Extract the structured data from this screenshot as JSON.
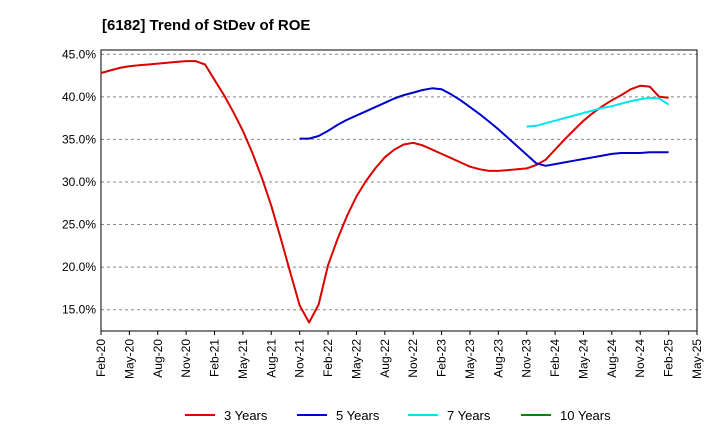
{
  "chart_data": {
    "type": "line",
    "title": "[6182]  Trend of StDev of ROE",
    "xlabel": "",
    "ylabel": "",
    "x_tick_labels": [
      "Feb-20",
      "May-20",
      "Aug-20",
      "Nov-20",
      "Feb-21",
      "May-21",
      "Aug-21",
      "Nov-21",
      "Feb-22",
      "May-22",
      "Aug-22",
      "Nov-22",
      "Feb-23",
      "May-23",
      "Aug-23",
      "Nov-23",
      "Feb-24",
      "May-24",
      "Aug-24",
      "Nov-24",
      "Feb-25",
      "May-25"
    ],
    "y_tick_labels": [
      "15.0%",
      "20.0%",
      "25.0%",
      "30.0%",
      "35.0%",
      "40.0%",
      "45.0%"
    ],
    "ylim": [
      12.5,
      45.5
    ],
    "y_ticks": [
      15,
      20,
      25,
      30,
      35,
      40,
      45
    ],
    "grid": "horizontal dashed",
    "legend_position": "bottom",
    "series": [
      {
        "name": "3 Years",
        "color": "#dd0000",
        "x": [
          "Feb-20",
          "Mar-20",
          "Apr-20",
          "May-20",
          "Jun-20",
          "Jul-20",
          "Aug-20",
          "Sep-20",
          "Oct-20",
          "Nov-20",
          "Dec-20",
          "Jan-21",
          "Feb-21",
          "Mar-21",
          "Apr-21",
          "May-21",
          "Jun-21",
          "Jul-21",
          "Aug-21",
          "Sep-21",
          "Oct-21",
          "Nov-21",
          "Dec-21",
          "Jan-22",
          "Feb-22",
          "Mar-22",
          "Apr-22",
          "May-22",
          "Jun-22",
          "Jul-22",
          "Aug-22",
          "Sep-22",
          "Oct-22",
          "Nov-22",
          "Dec-22",
          "Jan-23",
          "Feb-23",
          "Mar-23",
          "Apr-23",
          "May-23",
          "Jun-23",
          "Jul-23",
          "Aug-23",
          "Sep-23",
          "Oct-23",
          "Nov-23",
          "Dec-23",
          "Jan-24",
          "Feb-24",
          "Mar-24",
          "Apr-24",
          "May-24",
          "Jun-24",
          "Jul-24",
          "Aug-24",
          "Sep-24",
          "Oct-24",
          "Nov-24",
          "Dec-24",
          "Jan-25",
          "Feb-25"
        ],
        "values": [
          42.8,
          43.1,
          43.4,
          43.6,
          43.7,
          43.8,
          43.9,
          44.0,
          44.1,
          44.2,
          44.2,
          43.8,
          42.0,
          40.2,
          38.2,
          36.0,
          33.4,
          30.5,
          27.2,
          23.4,
          19.4,
          15.5,
          13.5,
          15.6,
          20.2,
          23.3,
          26.0,
          28.3,
          30.1,
          31.6,
          32.9,
          33.8,
          34.4,
          34.6,
          34.3,
          33.8,
          33.3,
          32.8,
          32.3,
          31.8,
          31.5,
          31.3,
          31.3,
          31.4,
          31.5,
          31.6,
          32.0,
          32.6,
          33.8,
          35.0,
          36.1,
          37.2,
          38.1,
          38.9,
          39.6,
          40.2,
          40.9,
          41.3,
          41.2,
          40.0,
          39.9
        ],
        "values_end_index": 59
      },
      {
        "name": "5 Years",
        "color": "#0000cc",
        "x": [
          "Nov-21",
          "Dec-21",
          "Jan-22",
          "Feb-22",
          "Mar-22",
          "Apr-22",
          "May-22",
          "Jun-22",
          "Jul-22",
          "Aug-22",
          "Sep-22",
          "Oct-22",
          "Nov-22",
          "Dec-22",
          "Jan-23",
          "Feb-23",
          "Mar-23",
          "Apr-23",
          "May-23",
          "Jun-23",
          "Jul-23",
          "Aug-23",
          "Sep-23",
          "Oct-23",
          "Nov-23",
          "Dec-23",
          "Jan-24",
          "Feb-24",
          "Mar-24",
          "Apr-24",
          "May-24",
          "Jun-24",
          "Jul-24",
          "Aug-24",
          "Sep-24",
          "Oct-24",
          "Nov-24",
          "Dec-24",
          "Jan-25",
          "Feb-25"
        ],
        "values": [
          35.1,
          35.1,
          35.4,
          36.0,
          36.7,
          37.3,
          37.8,
          38.3,
          38.8,
          39.3,
          39.8,
          40.2,
          40.5,
          40.8,
          41.0,
          40.9,
          40.3,
          39.6,
          38.8,
          38.0,
          37.1,
          36.2,
          35.2,
          34.2,
          33.2,
          32.2,
          31.9,
          32.1,
          32.3,
          32.5,
          32.7,
          32.9,
          33.1,
          33.3,
          33.4,
          33.4,
          33.4,
          33.5,
          33.5,
          33.5
        ]
      },
      {
        "name": "7 Years",
        "color": "#00e5ee",
        "x": [
          "Nov-23",
          "Dec-23",
          "Jan-24",
          "Feb-24",
          "Mar-24",
          "Apr-24",
          "May-24",
          "Jun-24",
          "Jul-24",
          "Aug-24",
          "Sep-24",
          "Oct-24",
          "Nov-24",
          "Dec-24",
          "Jan-25",
          "Feb-25"
        ],
        "values": [
          36.5,
          36.6,
          36.9,
          37.2,
          37.5,
          37.8,
          38.1,
          38.4,
          38.7,
          38.9,
          39.2,
          39.5,
          39.7,
          39.9,
          39.8,
          39.1
        ]
      },
      {
        "name": "10 Years",
        "color": "#008800",
        "x": [],
        "values": []
      }
    ]
  }
}
